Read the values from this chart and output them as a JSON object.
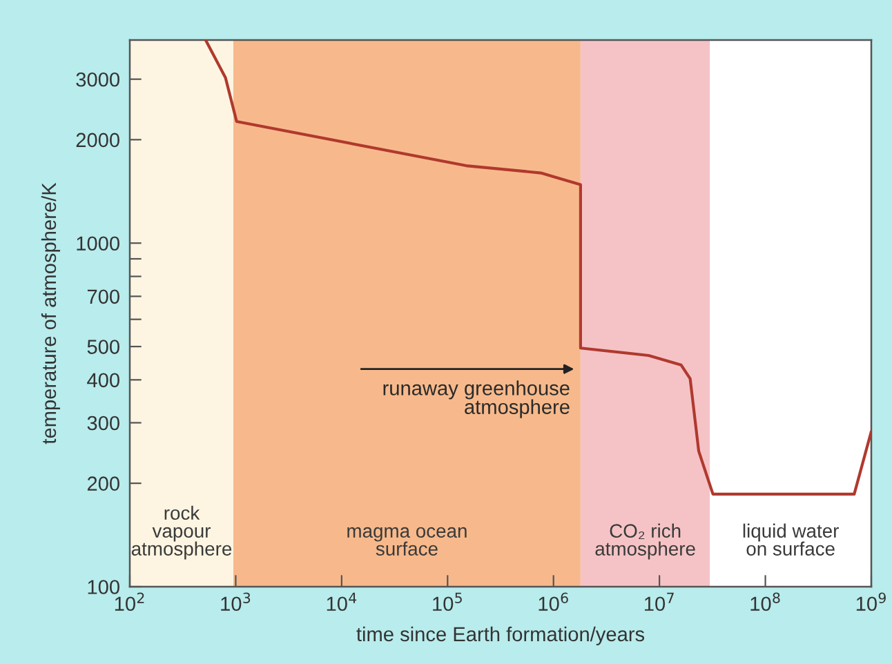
{
  "chart_data": {
    "type": "line",
    "xlabel": "time since Earth formation/years",
    "ylabel": "temperature of atmosphere/K",
    "x": [
      520,
      800,
      1020,
      150000,
      760000,
      1800000,
      1800000,
      7900000,
      16000000,
      19500000,
      23500000,
      32000000,
      690000000,
      1000000000
    ],
    "series": [
      {
        "color": "#b0392e",
        "values": [
          3900,
          3030,
          2260,
          1680,
          1600,
          1480,
          495,
          471,
          442,
          403,
          248,
          186,
          186,
          283
        ]
      }
    ],
    "log": "xy",
    "xlim": [
      100,
      1000000000
    ],
    "xticks": [
      {
        "value": 100,
        "label": "10$^{2}$"
      },
      {
        "value": 1000,
        "label": "10$^{3}$"
      },
      {
        "value": 10000,
        "label": "10$^{4}$"
      },
      {
        "value": 100000,
        "label": "10$^{5}$"
      },
      {
        "value": 1000000,
        "label": "10$^{6}$"
      },
      {
        "value": 10000000,
        "label": "10$^{7}$"
      },
      {
        "value": 100000000,
        "label": "10$^{8}$"
      },
      {
        "value": 1000000000,
        "label": "10$^{9}$"
      }
    ],
    "ylim": [
      100,
      3900
    ],
    "yticks": [
      100,
      200,
      300,
      400,
      500,
      {
        "value": 600,
        "label": null
      },
      700,
      {
        "value": 800,
        "label": null
      },
      {
        "value": 900,
        "label": null
      },
      1000,
      2000,
      3000
    ],
    "bands": [
      {
        "axis": "x",
        "from": 100,
        "to": 950,
        "label": "rock\nvapour\natmosphere",
        "color": "#fdf5e2"
      },
      {
        "axis": "x",
        "from": 950,
        "to": 1800000,
        "label": "magma ocean\nsurface",
        "color": "#f7b98b"
      },
      {
        "axis": "x",
        "from": 1800000,
        "to": 30000000,
        "label": "CO₂ rich\natmosphere",
        "color": "#f5c3c6"
      },
      {
        "axis": "x",
        "from": 30000000,
        "to": 1000000000,
        "label": "liquid water\non surface",
        "color": "#ffffff"
      }
    ],
    "annotations": [
      {
        "text": "runaway greenhouse\natmosphere",
        "x": 1700000,
        "y": 430
      }
    ],
    "grid": false,
    "marker": "none",
    "line_style": "solid"
  }
}
